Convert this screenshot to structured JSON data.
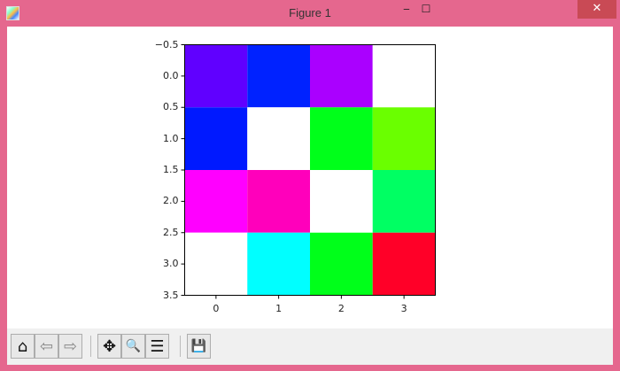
{
  "window": {
    "title": "Figure 1",
    "minimize": "‒",
    "maximize": "☐",
    "close": "✕"
  },
  "toolbar": {
    "buttons": [
      {
        "name": "home-icon",
        "glyph": "⌂"
      },
      {
        "name": "back-arrow-icon",
        "glyph": "⇦"
      },
      {
        "name": "forward-arrow-icon",
        "glyph": "⇨"
      },
      {
        "name": "pan-icon",
        "glyph": "✥"
      },
      {
        "name": "zoom-icon",
        "glyph": "🔍"
      },
      {
        "name": "configure-subplots-icon",
        "glyph": "☰"
      },
      {
        "name": "save-icon",
        "glyph": "💾"
      }
    ]
  },
  "chart_data": {
    "type": "heatmap",
    "rows": 4,
    "cols": 4,
    "cell_colors": [
      [
        "#6000ff",
        "#0022ff",
        "#aa00ff",
        "#ffffff"
      ],
      [
        "#0019ff",
        "#ffffff",
        "#00ff1a",
        "#6aff00"
      ],
      [
        "#ff00ff",
        "#ff00bb",
        "#ffffff",
        "#00ff63"
      ],
      [
        "#ffffff",
        "#00ffff",
        "#00ff1a",
        "#ff0028"
      ]
    ],
    "xlim": [
      -0.5,
      3.5
    ],
    "ylim": [
      3.5,
      -0.5
    ],
    "xticks": [
      "0",
      "1",
      "2",
      "3"
    ],
    "yticks": [
      "−0.5",
      "0.0",
      "0.5",
      "1.0",
      "1.5",
      "2.0",
      "2.5",
      "3.0",
      "3.5"
    ],
    "xlabel": "",
    "ylabel": "",
    "title": ""
  }
}
